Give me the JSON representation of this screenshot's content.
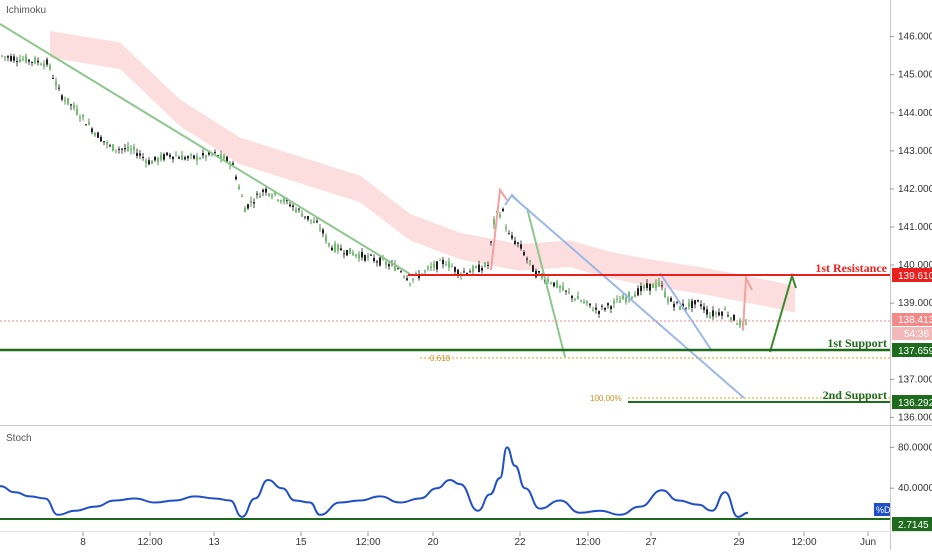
{
  "chart_data": [
    {
      "type": "candlestick",
      "indicator_label": "Ichimoku",
      "x_ticks": [
        "8",
        "12:00",
        "13",
        "15",
        "12:00",
        "20",
        "22",
        "12:00",
        "27",
        "29",
        "12:00",
        "Jun"
      ],
      "y_ticks": [
        "146.000",
        "145.000",
        "144.000",
        "143.000",
        "142.000",
        "141.000",
        "140.000",
        "139.000",
        "137.000",
        "136.000"
      ],
      "ylim": [
        135.8,
        146.7
      ],
      "price_path": [
        [
          0,
          145.5
        ],
        [
          25,
          145.4
        ],
        [
          48,
          145.3
        ],
        [
          60,
          144.5
        ],
        [
          75,
          144.1
        ],
        [
          95,
          143.5
        ],
        [
          110,
          143.1
        ],
        [
          135,
          143.0
        ],
        [
          150,
          142.7
        ],
        [
          170,
          142.9
        ],
        [
          190,
          142.8
        ],
        [
          215,
          142.9
        ],
        [
          232,
          142.7
        ],
        [
          245,
          141.5
        ],
        [
          265,
          142.0
        ],
        [
          290,
          141.6
        ],
        [
          320,
          141.0
        ],
        [
          330,
          140.5
        ],
        [
          355,
          140.3
        ],
        [
          380,
          140.1
        ],
        [
          400,
          139.9
        ],
        [
          410,
          139.6
        ],
        [
          430,
          139.9
        ],
        [
          445,
          140.1
        ],
        [
          460,
          139.8
        ],
        [
          478,
          139.9
        ],
        [
          488,
          140.0
        ],
        [
          495,
          141.3
        ],
        [
          503,
          141.4
        ],
        [
          508,
          140.8
        ],
        [
          520,
          140.5
        ],
        [
          535,
          139.8
        ],
        [
          550,
          139.6
        ],
        [
          565,
          139.3
        ],
        [
          578,
          139.1
        ],
        [
          598,
          138.8
        ],
        [
          615,
          139.0
        ],
        [
          630,
          139.2
        ],
        [
          645,
          139.4
        ],
        [
          660,
          139.5
        ],
        [
          668,
          139.1
        ],
        [
          680,
          138.9
        ],
        [
          700,
          139.0
        ],
        [
          710,
          138.7
        ],
        [
          725,
          138.8
        ],
        [
          738,
          138.5
        ],
        [
          746,
          138.4
        ]
      ],
      "ichimoku_cloud": [
        [
          50,
          145.8
        ],
        [
          120,
          145.5
        ],
        [
          180,
          144.0
        ],
        [
          240,
          143.0
        ],
        [
          300,
          142.5
        ],
        [
          360,
          142.0
        ],
        [
          410,
          141.0
        ],
        [
          460,
          140.5
        ],
        [
          520,
          140.2
        ],
        [
          570,
          140.3
        ],
        [
          610,
          140.0
        ],
        [
          650,
          139.8
        ],
        [
          700,
          139.6
        ],
        [
          760,
          139.3
        ],
        [
          795,
          139.1
        ]
      ],
      "stoch_path": [
        [
          0,
          42
        ],
        [
          15,
          36
        ],
        [
          30,
          32
        ],
        [
          45,
          30
        ],
        [
          58,
          14
        ],
        [
          75,
          18
        ],
        [
          95,
          22
        ],
        [
          115,
          28
        ],
        [
          135,
          30
        ],
        [
          155,
          26
        ],
        [
          175,
          28
        ],
        [
          195,
          32
        ],
        [
          215,
          30
        ],
        [
          230,
          28
        ],
        [
          242,
          12
        ],
        [
          255,
          30
        ],
        [
          268,
          48
        ],
        [
          282,
          40
        ],
        [
          295,
          28
        ],
        [
          310,
          26
        ],
        [
          320,
          14
        ],
        [
          340,
          26
        ],
        [
          360,
          28
        ],
        [
          380,
          32
        ],
        [
          400,
          26
        ],
        [
          420,
          30
        ],
        [
          437,
          40
        ],
        [
          450,
          48
        ],
        [
          460,
          44
        ],
        [
          478,
          18
        ],
        [
          490,
          34
        ],
        [
          500,
          50
        ],
        [
          507,
          80
        ],
        [
          515,
          62
        ],
        [
          525,
          40
        ],
        [
          540,
          20
        ],
        [
          560,
          28
        ],
        [
          580,
          16
        ],
        [
          600,
          18
        ],
        [
          620,
          14
        ],
        [
          640,
          22
        ],
        [
          662,
          38
        ],
        [
          678,
          28
        ],
        [
          698,
          24
        ],
        [
          712,
          18
        ],
        [
          725,
          36
        ],
        [
          738,
          12
        ],
        [
          748,
          16
        ]
      ],
      "stoch_ylim": [
        5,
        95
      ],
      "stoch_ticks": [
        "80.0000",
        "40.0000"
      ],
      "stoch_label": "Stoch",
      "stoch_value": "2.7145",
      "stoch_legend": "%D",
      "levels": {
        "resistance": {
          "label": "1st Resistance",
          "value": "139.610",
          "color": "#e8201e"
        },
        "support1": {
          "label": "1st Support",
          "value": "137.659",
          "color": "#1e6b1e"
        },
        "support2": {
          "label": "2nd Support",
          "value": "136.292",
          "color": "#1e6b1e"
        },
        "current": {
          "value": "138.413",
          "timer": "54:36",
          "color": "#f28a8a"
        }
      },
      "fib_labels": {
        "f618": "0.618",
        "f100": "100.00%"
      }
    }
  ]
}
